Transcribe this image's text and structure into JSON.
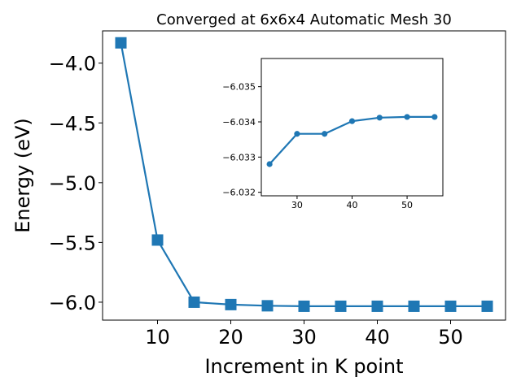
{
  "colors": {
    "series": "#1f77b4",
    "axes": "#000000",
    "background": "#ffffff"
  },
  "chart_data": [
    {
      "type": "line",
      "title": "Converged at 6x6x4 Automatic Mesh 30",
      "xlabel": "Increment in K point",
      "ylabel": "Energy (eV)",
      "marker": "square",
      "x": [
        5,
        10,
        15,
        20,
        25,
        30,
        35,
        40,
        45,
        50,
        55
      ],
      "series": [
        {
          "name": "",
          "values": [
            -3.83,
            -5.48,
            -6.0,
            -6.02,
            -6.03,
            -6.034,
            -6.034,
            -6.034,
            -6.034,
            -6.034,
            -6.034
          ]
        }
      ],
      "xlim": [
        2.5,
        57.5
      ],
      "ylim": [
        -6.15,
        -3.73
      ],
      "xticks": [
        10,
        20,
        30,
        40,
        50
      ],
      "xtick_labels": [
        "10",
        "20",
        "30",
        "40",
        "50"
      ],
      "yticks": [
        -4.0,
        -4.5,
        -5.0,
        -5.5,
        -6.0
      ],
      "ytick_labels": [
        "−4.0",
        "−4.5",
        "−5.0",
        "−5.5",
        "−6.0"
      ],
      "grid": false
    },
    {
      "type": "line",
      "title": "",
      "xlabel": "",
      "ylabel": "",
      "marker": "circle",
      "y_inverted": true,
      "x": [
        25,
        30,
        35,
        40,
        45,
        50,
        55
      ],
      "series": [
        {
          "name": "",
          "values": [
            -6.0328,
            -6.03366,
            -6.03366,
            -6.03402,
            -6.03412,
            -6.03414,
            -6.03414
          ]
        }
      ],
      "xlim": [
        23.5,
        56.5
      ],
      "ylim": [
        -6.0319,
        -6.0358
      ],
      "xticks": [
        30,
        40,
        50
      ],
      "xtick_labels": [
        "30",
        "40",
        "50"
      ],
      "yticks": [
        -6.035,
        -6.034,
        -6.033,
        -6.032
      ],
      "ytick_labels": [
        "−6.035",
        "−6.034",
        "−6.033",
        "−6.032"
      ],
      "grid": false
    }
  ]
}
